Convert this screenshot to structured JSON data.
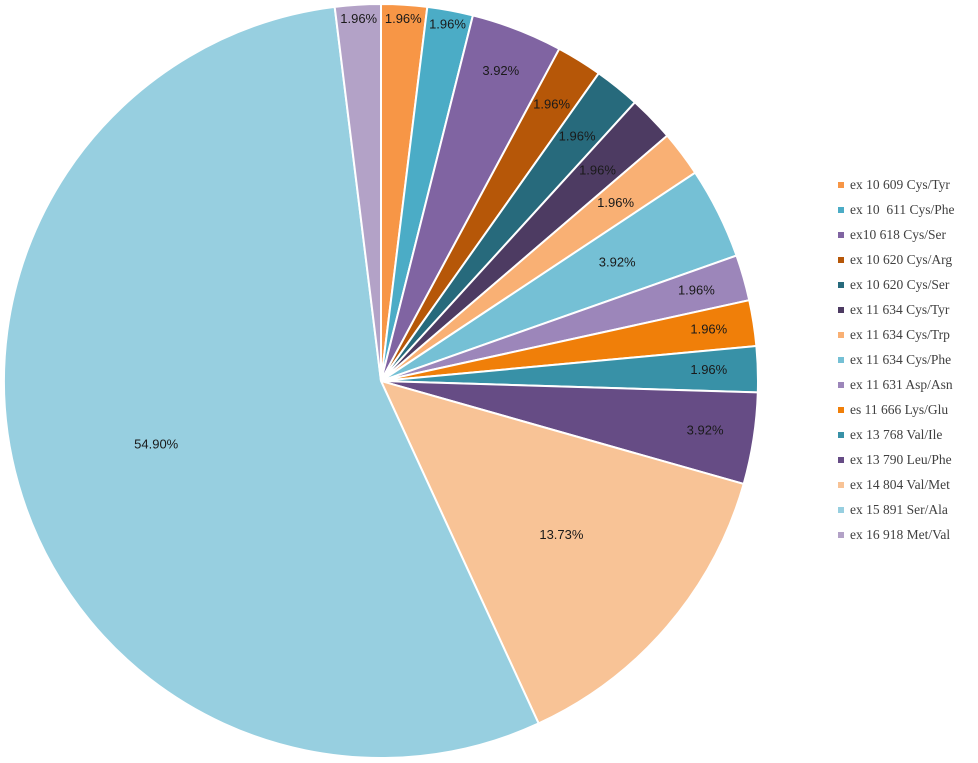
{
  "chart_data": {
    "type": "pie",
    "start": "top, clockwise",
    "legend_position": "right",
    "slices": [
      {
        "name": "ex 10 609 Cys/Tyr",
        "value": 1.96,
        "label": "1.96%",
        "color": "#f79646"
      },
      {
        "name": "ex 10  611 Cys/Phe",
        "value": 1.96,
        "label": "1.96%",
        "color": "#4bacc6"
      },
      {
        "name": "ex10 618 Cys/Ser",
        "value": 3.92,
        "label": "3.92%",
        "color": "#8064a2"
      },
      {
        "name": "ex 10 620 Cys/Arg",
        "value": 1.96,
        "label": "1.96%",
        "color": "#b65708"
      },
      {
        "name": "ex 10 620 Cys/Ser",
        "value": 1.96,
        "label": "1.96%",
        "color": "#276a7c"
      },
      {
        "name": "ex 11 634 Cys/Tyr",
        "value": 1.96,
        "label": "1.96%",
        "color": "#4d3b62"
      },
      {
        "name": "ex 11 634 Cys/Trp",
        "value": 1.96,
        "label": "1.96%",
        "color": "#f9b074"
      },
      {
        "name": "ex 11 634 Cys/Phe",
        "value": 3.92,
        "label": "3.92%",
        "color": "#75c0d5"
      },
      {
        "name": "ex 11 631 Asp/Asn",
        "value": 1.96,
        "label": "1.96%",
        "color": "#9c86ba"
      },
      {
        "name": "es 11 666 Lys/Glu",
        "value": 1.96,
        "label": "1.96%",
        "color": "#f07f09"
      },
      {
        "name": "ex 13 768 Val/Ile",
        "value": 1.96,
        "label": "1.96%",
        "color": "#3891a7"
      },
      {
        "name": "ex 13 790 Leu/Phe",
        "value": 3.92,
        "label": "3.92%",
        "color": "#664c85"
      },
      {
        "name": "ex 14 804 Val/Met",
        "value": 13.73,
        "label": "13.73%",
        "color": "#f8c396"
      },
      {
        "name": "ex 15 891 Ser/Ala",
        "value": 54.9,
        "label": "54.90%",
        "color": "#97cfe0"
      },
      {
        "name": "ex 16 918 Met/Val",
        "value": 1.96,
        "label": "1.96%",
        "color": "#b3a2c7"
      }
    ]
  }
}
